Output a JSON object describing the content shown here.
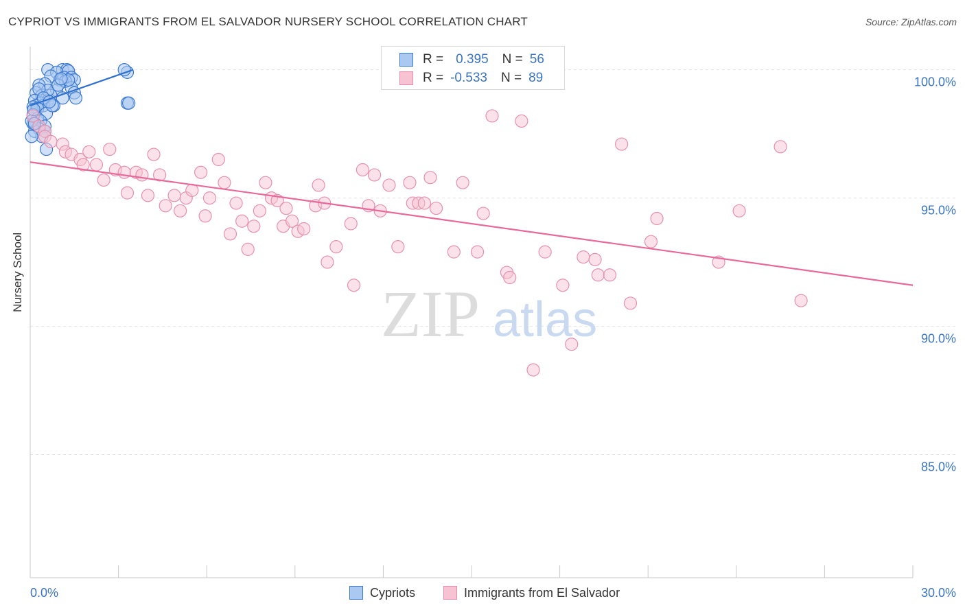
{
  "title": "CYPRIOT VS IMMIGRANTS FROM EL SALVADOR NURSERY SCHOOL CORRELATION CHART",
  "source": "Source: ZipAtlas.com",
  "watermark": {
    "zip": "ZIP",
    "atlas": "atlas"
  },
  "legend": {
    "rows": [
      {
        "r_label": "R =",
        "r_value": "0.395",
        "n_label": "N =",
        "n_value": "56"
      },
      {
        "r_label": "R =",
        "r_value": "-0.533",
        "n_label": "N =",
        "n_value": "89"
      }
    ]
  },
  "bottom_legend": {
    "series1": "Cypriots",
    "series2": "Immigrants from El Salvador"
  },
  "colors": {
    "blue_fill": "#aac8f0",
    "blue_stroke": "#3a78d0",
    "blue_line": "#2e6fd0",
    "pink_fill": "#f7c3d3",
    "pink_stroke": "#e690ae",
    "pink_line": "#e8689a",
    "axis_text": "#3a74c4",
    "grid": "#e3e3e3"
  },
  "chart_data": {
    "type": "scatter",
    "title": "CYPRIOT VS IMMIGRANTS FROM EL SALVADOR NURSERY SCHOOL CORRELATION CHART",
    "xlabel": "",
    "ylabel": "Nursery School",
    "xlim": [
      0,
      30
    ],
    "ylim": [
      80.2,
      100.9
    ],
    "x_tick_labels": [
      "0.0%",
      "30.0%"
    ],
    "y_ticks": [
      85,
      90,
      95,
      100
    ],
    "y_tick_labels": [
      "85.0%",
      "90.0%",
      "95.0%",
      "100.0%"
    ],
    "series": [
      {
        "name": "Cypriots",
        "r": 0.395,
        "n": 56,
        "trend": [
          [
            0.0,
            98.6
          ],
          [
            3.5,
            100.0
          ]
        ],
        "points": [
          [
            0.6,
            100.0
          ],
          [
            1.1,
            100.0
          ],
          [
            1.25,
            100.0
          ],
          [
            0.9,
            99.9
          ],
          [
            1.3,
            99.95
          ],
          [
            1.15,
            99.7
          ],
          [
            1.4,
            99.7
          ],
          [
            1.0,
            99.6
          ],
          [
            0.7,
            99.75
          ],
          [
            1.5,
            99.6
          ],
          [
            1.2,
            99.55
          ],
          [
            0.5,
            99.45
          ],
          [
            0.3,
            99.4
          ],
          [
            1.4,
            99.3
          ],
          [
            0.9,
            99.2
          ],
          [
            1.5,
            99.1
          ],
          [
            0.2,
            99.1
          ],
          [
            0.7,
            99.0
          ],
          [
            0.4,
            99.0
          ],
          [
            1.1,
            98.9
          ],
          [
            1.55,
            98.9
          ],
          [
            0.15,
            98.8
          ],
          [
            0.6,
            98.8
          ],
          [
            0.35,
            98.7
          ],
          [
            0.2,
            98.6
          ],
          [
            0.8,
            98.6
          ],
          [
            0.1,
            98.55
          ],
          [
            0.45,
            98.6
          ],
          [
            0.25,
            98.5
          ],
          [
            0.55,
            98.3
          ],
          [
            0.1,
            98.25
          ],
          [
            0.25,
            98.1
          ],
          [
            0.35,
            98.0
          ],
          [
            0.1,
            97.9
          ],
          [
            0.5,
            97.8
          ],
          [
            0.3,
            97.7
          ],
          [
            0.15,
            97.6
          ],
          [
            0.4,
            97.4
          ],
          [
            0.05,
            97.4
          ],
          [
            0.55,
            96.9
          ],
          [
            3.3,
            99.9
          ],
          [
            3.2,
            100.0
          ],
          [
            3.3,
            98.7
          ],
          [
            3.35,
            98.7
          ],
          [
            0.05,
            98.0
          ],
          [
            0.15,
            97.9
          ],
          [
            0.6,
            99.2
          ],
          [
            1.3,
            99.6
          ],
          [
            0.95,
            99.4
          ],
          [
            0.75,
            98.6
          ],
          [
            1.05,
            99.65
          ],
          [
            0.3,
            99.25
          ],
          [
            0.5,
            97.6
          ],
          [
            0.12,
            98.45
          ],
          [
            0.45,
            98.9
          ],
          [
            0.65,
            98.75
          ]
        ]
      },
      {
        "name": "Immigrants from El Salvador",
        "r": -0.533,
        "n": 89,
        "trend": [
          [
            0.0,
            96.4
          ],
          [
            30.0,
            91.6
          ]
        ],
        "points": [
          [
            0.1,
            98.2
          ],
          [
            0.3,
            97.8
          ],
          [
            0.5,
            97.6
          ],
          [
            0.5,
            97.4
          ],
          [
            0.7,
            97.2
          ],
          [
            1.1,
            97.1
          ],
          [
            1.2,
            96.8
          ],
          [
            1.4,
            96.7
          ],
          [
            1.7,
            96.5
          ],
          [
            1.8,
            96.3
          ],
          [
            2.0,
            96.8
          ],
          [
            2.25,
            96.3
          ],
          [
            2.5,
            95.7
          ],
          [
            2.7,
            96.9
          ],
          [
            2.9,
            96.1
          ],
          [
            3.2,
            96.0
          ],
          [
            3.3,
            95.2
          ],
          [
            3.6,
            96.0
          ],
          [
            3.8,
            95.9
          ],
          [
            4.0,
            95.1
          ],
          [
            4.2,
            96.7
          ],
          [
            4.4,
            95.9
          ],
          [
            4.6,
            94.7
          ],
          [
            4.9,
            95.1
          ],
          [
            5.1,
            94.5
          ],
          [
            5.3,
            95.0
          ],
          [
            5.5,
            95.3
          ],
          [
            5.8,
            96.0
          ],
          [
            5.95,
            94.3
          ],
          [
            6.1,
            95.0
          ],
          [
            6.4,
            96.5
          ],
          [
            6.6,
            95.6
          ],
          [
            6.8,
            93.6
          ],
          [
            7.0,
            94.8
          ],
          [
            7.2,
            94.1
          ],
          [
            7.4,
            93.0
          ],
          [
            7.6,
            93.9
          ],
          [
            7.8,
            94.5
          ],
          [
            8.0,
            95.6
          ],
          [
            8.2,
            95.0
          ],
          [
            8.4,
            94.9
          ],
          [
            8.6,
            93.9
          ],
          [
            8.7,
            94.6
          ],
          [
            8.9,
            94.1
          ],
          [
            9.1,
            93.7
          ],
          [
            9.3,
            93.8
          ],
          [
            9.7,
            94.7
          ],
          [
            9.8,
            95.5
          ],
          [
            10.0,
            94.8
          ],
          [
            10.1,
            92.5
          ],
          [
            10.4,
            93.1
          ],
          [
            10.9,
            94.0
          ],
          [
            11.0,
            91.6
          ],
          [
            11.3,
            96.1
          ],
          [
            11.5,
            94.7
          ],
          [
            11.7,
            95.9
          ],
          [
            11.9,
            94.5
          ],
          [
            12.2,
            95.5
          ],
          [
            12.5,
            93.1
          ],
          [
            12.9,
            95.6
          ],
          [
            13.0,
            94.8
          ],
          [
            13.2,
            94.8
          ],
          [
            13.4,
            94.8
          ],
          [
            13.6,
            95.8
          ],
          [
            13.8,
            94.6
          ],
          [
            14.4,
            92.9
          ],
          [
            14.7,
            95.6
          ],
          [
            15.2,
            92.9
          ],
          [
            15.4,
            94.4
          ],
          [
            15.7,
            98.2
          ],
          [
            16.2,
            92.1
          ],
          [
            16.3,
            91.9
          ],
          [
            16.7,
            98.0
          ],
          [
            17.1,
            88.3
          ],
          [
            17.5,
            92.9
          ],
          [
            18.1,
            91.6
          ],
          [
            18.4,
            89.3
          ],
          [
            18.8,
            92.7
          ],
          [
            19.2,
            92.6
          ],
          [
            19.3,
            92.0
          ],
          [
            19.7,
            92.0
          ],
          [
            20.1,
            97.1
          ],
          [
            20.4,
            90.9
          ],
          [
            21.1,
            93.3
          ],
          [
            21.3,
            94.2
          ],
          [
            23.4,
            92.5
          ],
          [
            24.1,
            94.5
          ],
          [
            25.5,
            97.0
          ],
          [
            26.2,
            91.0
          ]
        ]
      }
    ]
  }
}
